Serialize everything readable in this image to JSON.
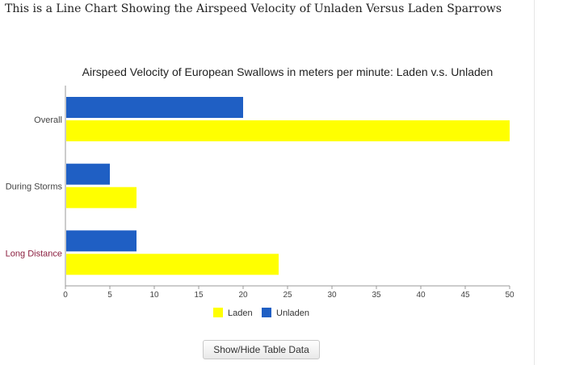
{
  "page": {
    "heading": "This is a Line Chart Showing the Airspeed Velocity of Unladen Versus Laden Sparrows",
    "toggle_button_label": "Show/Hide Table Data"
  },
  "colors": {
    "laden": "#ffff00",
    "unladen": "#1f5fc4",
    "accent_label": "#8b1e3f"
  },
  "chart_data": {
    "type": "bar",
    "orientation": "horizontal",
    "title": "Airspeed Velocity of European Swallows in meters per minute: Laden v.s. Unladen",
    "categories": [
      "Overall",
      "During Storms",
      "Long Distance"
    ],
    "series": [
      {
        "name": "Unladen",
        "values": [
          20,
          5,
          8
        ]
      },
      {
        "name": "Laden",
        "values": [
          50,
          8,
          24
        ]
      }
    ],
    "xlim": [
      0,
      50
    ],
    "x_ticks": [
      "0",
      "5",
      "10",
      "15",
      "20",
      "25",
      "30",
      "35",
      "40",
      "45",
      "50"
    ],
    "xlabel": "",
    "ylabel": "",
    "grid": false,
    "legend": [
      "Laden",
      "Unladen"
    ],
    "legend_position": "bottom"
  }
}
